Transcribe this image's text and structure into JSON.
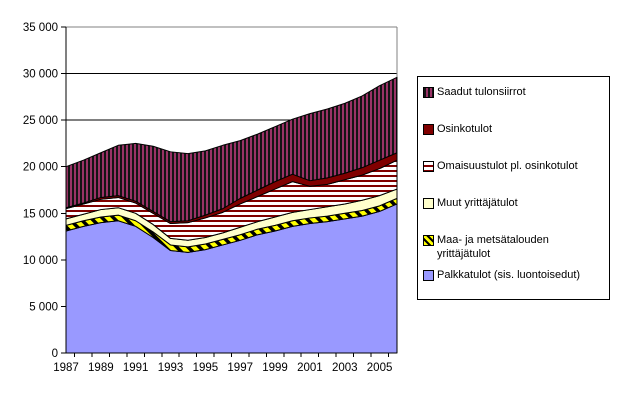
{
  "chart": {
    "background": "#FFFFFF",
    "plot_border_color": "#808080",
    "gridline_color": "#000000",
    "axis_color": "#000000",
    "tick_label_color": "#000000",
    "legend_border_color": "#000000",
    "legend_background": "#FFFFFF"
  },
  "chart_data": {
    "type": "area",
    "stacked": true,
    "title": "",
    "xlabel": "",
    "ylabel": "",
    "grid": true,
    "legend_position": "right",
    "ylim": [
      0,
      35000
    ],
    "y_tick_step": 5000,
    "x": [
      1987,
      1988,
      1989,
      1990,
      1991,
      1992,
      1993,
      1994,
      1995,
      1996,
      1997,
      1998,
      1999,
      2000,
      2001,
      2002,
      2003,
      2004,
      2005,
      2006
    ],
    "x_axis_tick_labels": [
      "1987",
      "1989",
      "1991",
      "1993",
      "1995",
      "1997",
      "1999",
      "2001",
      "2003",
      "2005"
    ],
    "y_axis_tick_labels": [
      "0",
      "5 000",
      "10 000",
      "15 000",
      "20 000",
      "25 000",
      "30 000",
      "35 000"
    ],
    "series": [
      {
        "name": "Palkkatulot (sis. luontoisedut)",
        "fill": "solid",
        "color": "#9999FF",
        "pattern_color": "#9999FF",
        "values": [
          13100,
          13600,
          14000,
          14200,
          13600,
          12400,
          11000,
          10800,
          11100,
          11600,
          12100,
          12700,
          13100,
          13600,
          13900,
          14100,
          14400,
          14700,
          15200,
          16000
        ]
      },
      {
        "name": "Maa- ja metsätalouden yrittäjätulot",
        "fill": "diagonal-stripes",
        "color": "#FFFF00",
        "pattern_color": "#000000",
        "values": [
          600,
          600,
          600,
          600,
          600,
          600,
          600,
          600,
          600,
          600,
          600,
          600,
          600,
          600,
          600,
          600,
          600,
          600,
          600,
          600
        ]
      },
      {
        "name": "Muut yrittäjätulot",
        "fill": "solid",
        "color": "#FFFFCC",
        "pattern_color": "#FFFFCC",
        "values": [
          700,
          700,
          800,
          800,
          800,
          800,
          700,
          700,
          700,
          700,
          800,
          800,
          900,
          900,
          900,
          1000,
          1000,
          1100,
          1100,
          1000
        ]
      },
      {
        "name": "Omaisuustulot pl. osinkotulot",
        "fill": "horizontal-stripes",
        "color": "#FFFFFF",
        "pattern_color": "#800000",
        "values": [
          1100,
          1100,
          1100,
          1100,
          1100,
          1200,
          1600,
          1900,
          2100,
          2200,
          2500,
          2700,
          3000,
          3300,
          2500,
          2400,
          2600,
          2700,
          2900,
          3100
        ]
      },
      {
        "name": "Osinkotulot",
        "fill": "solid",
        "color": "#800000",
        "pattern_color": "#800000",
        "values": [
          100,
          100,
          200,
          200,
          200,
          200,
          200,
          200,
          300,
          400,
          600,
          700,
          800,
          800,
          600,
          700,
          700,
          800,
          900,
          800
        ]
      },
      {
        "name": "Saadut tulonsiirrot",
        "fill": "vertical-stripes",
        "color": "#993366",
        "pattern_color": "#141414",
        "values": [
          4400,
          4600,
          4800,
          5400,
          6200,
          7000,
          7500,
          7200,
          6900,
          6800,
          6200,
          6000,
          5900,
          5900,
          7200,
          7400,
          7500,
          7700,
          8000,
          8100
        ]
      }
    ],
    "legend_top_to_bottom": [
      "Saadut tulonsiirrot",
      "Osinkotulot",
      "Omaisuustulot pl. osinkotulot",
      "Muut yrittäjätulot",
      "Maa- ja metsätalouden yrittäjätulot",
      "Palkkatulot (sis. luontoisedut)"
    ]
  }
}
